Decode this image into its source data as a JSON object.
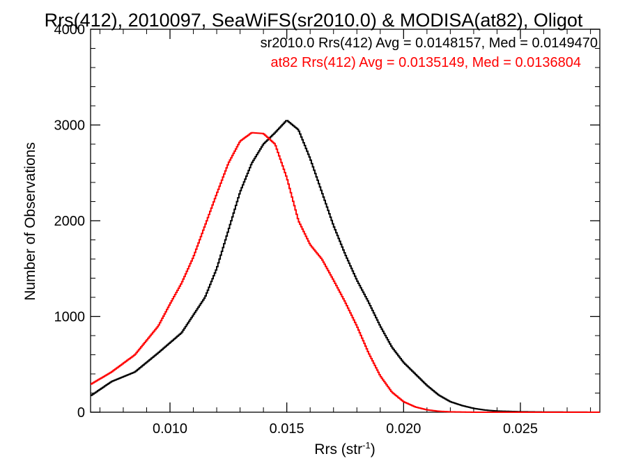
{
  "chart_data": {
    "type": "line",
    "title": "Rrs(412), 2010097, SeaWiFS(sr2010.0) & MODISA(at82), Oligot",
    "xlabel": "Rrs (str",
    "xlabel_sup": "-1",
    "xlabel_close": ")",
    "ylabel": "Number of Observations",
    "xlim": [
      0.0066,
      0.0284
    ],
    "ylim": [
      0,
      4000
    ],
    "x_ticks": [
      0.01,
      0.015,
      0.02,
      0.025
    ],
    "x_tick_labels": [
      "0.010",
      "0.015",
      "0.020",
      "0.025"
    ],
    "y_ticks": [
      0,
      1000,
      2000,
      3000,
      4000
    ],
    "y_tick_labels": [
      "0",
      "1000",
      "2000",
      "3000",
      "4000"
    ],
    "step": "histogram",
    "annotations": [
      {
        "text": "sr2010.0 Rrs(412) Avg = 0.0148157, Med = 0.0149470",
        "color": "#000000"
      },
      {
        "text": "at82 Rrs(412) Avg = 0.0135149, Med = 0.0136804",
        "color": "#ff0000"
      }
    ],
    "series": [
      {
        "color": "#000000",
        "points": [
          [
            0.0066,
            170
          ],
          [
            0.0075,
            320
          ],
          [
            0.0085,
            420
          ],
          [
            0.0095,
            620
          ],
          [
            0.0105,
            830
          ],
          [
            0.0115,
            1200
          ],
          [
            0.012,
            1500
          ],
          [
            0.0125,
            1900
          ],
          [
            0.013,
            2300
          ],
          [
            0.0135,
            2600
          ],
          [
            0.014,
            2800
          ],
          [
            0.0145,
            2920
          ],
          [
            0.015,
            3050
          ],
          [
            0.0155,
            2950
          ],
          [
            0.016,
            2650
          ],
          [
            0.0165,
            2300
          ],
          [
            0.017,
            1950
          ],
          [
            0.0175,
            1650
          ],
          [
            0.018,
            1380
          ],
          [
            0.0185,
            1150
          ],
          [
            0.019,
            900
          ],
          [
            0.0195,
            680
          ],
          [
            0.02,
            520
          ],
          [
            0.0205,
            400
          ],
          [
            0.021,
            280
          ],
          [
            0.0215,
            180
          ],
          [
            0.022,
            110
          ],
          [
            0.0225,
            70
          ],
          [
            0.023,
            40
          ],
          [
            0.0235,
            22
          ],
          [
            0.024,
            12
          ],
          [
            0.025,
            5
          ],
          [
            0.026,
            2
          ],
          [
            0.0284,
            0
          ]
        ]
      },
      {
        "color": "#ff0000",
        "points": [
          [
            0.0066,
            290
          ],
          [
            0.0075,
            420
          ],
          [
            0.0085,
            600
          ],
          [
            0.0095,
            900
          ],
          [
            0.01,
            1130
          ],
          [
            0.0105,
            1350
          ],
          [
            0.011,
            1620
          ],
          [
            0.0115,
            1950
          ],
          [
            0.012,
            2280
          ],
          [
            0.0125,
            2600
          ],
          [
            0.013,
            2830
          ],
          [
            0.0135,
            2920
          ],
          [
            0.014,
            2910
          ],
          [
            0.0145,
            2800
          ],
          [
            0.015,
            2450
          ],
          [
            0.0155,
            2000
          ],
          [
            0.016,
            1750
          ],
          [
            0.0165,
            1600
          ],
          [
            0.017,
            1380
          ],
          [
            0.0175,
            1150
          ],
          [
            0.018,
            900
          ],
          [
            0.0185,
            620
          ],
          [
            0.019,
            380
          ],
          [
            0.0195,
            210
          ],
          [
            0.02,
            110
          ],
          [
            0.0205,
            55
          ],
          [
            0.021,
            25
          ],
          [
            0.0215,
            10
          ],
          [
            0.022,
            4
          ],
          [
            0.023,
            0
          ],
          [
            0.0284,
            0
          ]
        ]
      }
    ]
  }
}
